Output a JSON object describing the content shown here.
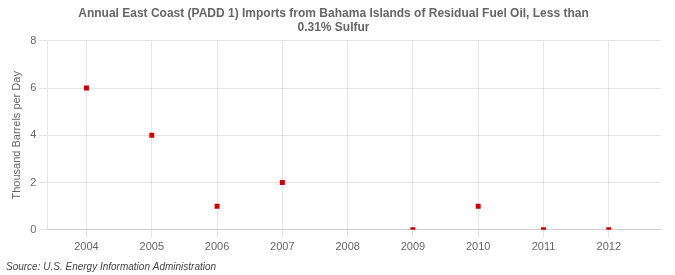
{
  "chart_data": {
    "type": "scatter",
    "title": "Annual East Coast (PADD 1) Imports from Bahama Islands of Residual Fuel Oil, Less than\n0.31% Sulfur",
    "y_label": "Thousand Barrels per Day",
    "annotation": "Source: U.S. Energy Information Administration",
    "x": [
      2004,
      2005,
      2006,
      2007,
      2009,
      2010,
      2011,
      2012
    ],
    "values": [
      6.0,
      4.0,
      1.0,
      2.0,
      0.0,
      1.0,
      0.0,
      0.0
    ],
    "color": "#cc0000",
    "marker": "square",
    "xlim": [
      2003.4,
      2012.8
    ],
    "xticks": [
      2004,
      2005,
      2006,
      2007,
      2008,
      2009,
      2010,
      2011,
      2012
    ],
    "ylim": [
      0,
      8
    ],
    "yticks": [
      0,
      2,
      4,
      6,
      8
    ],
    "grid": true
  }
}
